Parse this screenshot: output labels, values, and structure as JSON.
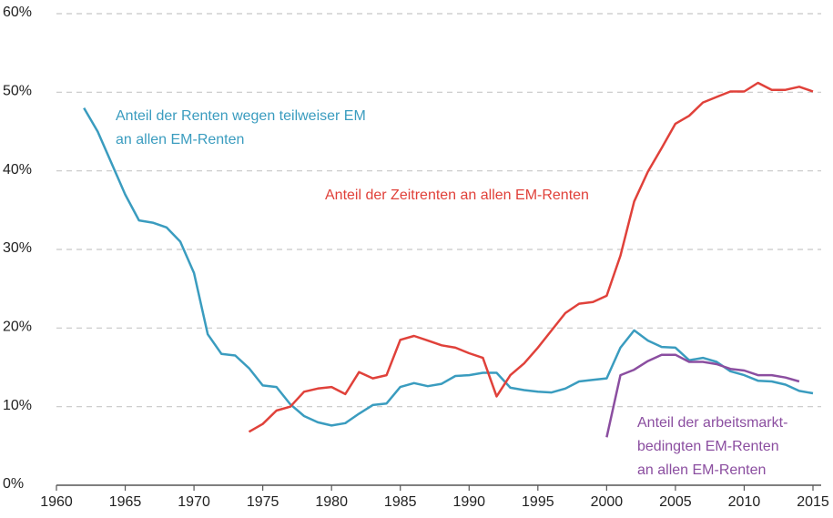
{
  "chart_data": {
    "type": "line",
    "x": [
      1962,
      1963,
      1964,
      1965,
      1966,
      1967,
      1968,
      1969,
      1970,
      1971,
      1972,
      1973,
      1974,
      1975,
      1976,
      1977,
      1978,
      1979,
      1980,
      1981,
      1982,
      1983,
      1984,
      1985,
      1986,
      1987,
      1988,
      1989,
      1990,
      1991,
      1992,
      1993,
      1994,
      1995,
      1996,
      1997,
      1998,
      1999,
      2000,
      2001,
      2002,
      2003,
      2004,
      2005,
      2006,
      2007,
      2008,
      2009,
      2010,
      2011,
      2012,
      2013,
      2014,
      2015
    ],
    "series": [
      {
        "name": "Anteil der Renten wegen teilweiser EM an allen EM-Renten",
        "color": "#3a9cbf",
        "values": [
          48,
          45,
          41,
          37,
          33.7,
          33.4,
          32.8,
          31,
          27,
          19.2,
          16.7,
          16.5,
          14.9,
          12.7,
          12.5,
          10.3,
          8.8,
          8,
          7.6,
          7.9,
          9.1,
          10.2,
          10.4,
          12.5,
          13,
          12.6,
          12.9,
          13.9,
          14,
          14.3,
          14.3,
          12.4,
          12.1,
          11.9,
          11.8,
          12.3,
          13.2,
          13.4,
          13.6,
          17.5,
          19.7,
          18.4,
          17.6,
          17.5,
          15.9,
          16.2,
          15.7,
          14.5,
          14,
          13.3,
          13.2,
          12.8,
          12,
          11.7
        ]
      },
      {
        "name": "Anteil der Zeitrenten an allen EM-Renten",
        "color": "#e0413a",
        "values": [
          null,
          null,
          null,
          null,
          null,
          null,
          null,
          null,
          null,
          null,
          null,
          null,
          6.8,
          7.8,
          9.5,
          10,
          11.9,
          12.3,
          12.5,
          11.6,
          14.4,
          13.6,
          14,
          18.5,
          19,
          18.4,
          17.8,
          17.5,
          16.8,
          16.2,
          11.3,
          14,
          15.5,
          17.5,
          19.7,
          21.9,
          23.1,
          23.3,
          24.1,
          29.2,
          36.1,
          39.9,
          42.9,
          46,
          47,
          48.7,
          49.4,
          50.1,
          50.1,
          51.2,
          50.3,
          50.3,
          50.7,
          50.1
        ]
      },
      {
        "name": "Anteil der arbeitsmarktbedingten EM-Renten an allen EM-Renten",
        "color": "#8b4ea0",
        "values": [
          null,
          null,
          null,
          null,
          null,
          null,
          null,
          null,
          null,
          null,
          null,
          null,
          null,
          null,
          null,
          null,
          null,
          null,
          null,
          null,
          null,
          null,
          null,
          null,
          null,
          null,
          null,
          null,
          null,
          null,
          null,
          null,
          null,
          null,
          null,
          null,
          null,
          null,
          6.1,
          14,
          14.7,
          15.8,
          16.6,
          16.6,
          15.7,
          15.7,
          15.4,
          14.8,
          14.6,
          14,
          14,
          13.7,
          13.2,
          null
        ]
      }
    ],
    "annotations": [
      {
        "lines": [
          "Anteil der Renten wegen teilweiser EM",
          "an allen EM-Renten"
        ],
        "color": "#3a9cbf"
      },
      {
        "lines": [
          "Anteil der Zeitrenten an allen EM-Renten"
        ],
        "color": "#e0413a"
      },
      {
        "lines": [
          "Anteil der arbeitsmarkt-",
          "bedingten EM-Renten",
          "an allen EM-Renten"
        ],
        "color": "#8b4ea0"
      }
    ],
    "xlim": [
      1960,
      2015
    ],
    "ylim": [
      0,
      60
    ],
    "xticks": [
      1960,
      1965,
      1970,
      1975,
      1980,
      1985,
      1990,
      1995,
      2000,
      2005,
      2010,
      2015
    ],
    "yticks": [
      {
        "value": 0,
        "label": "0%"
      },
      {
        "value": 10,
        "label": "10%"
      },
      {
        "value": 20,
        "label": "20%"
      },
      {
        "value": 30,
        "label": "30%"
      },
      {
        "value": 40,
        "label": "40%"
      },
      {
        "value": 50,
        "label": "50%"
      },
      {
        "value": 60,
        "label": "60%"
      }
    ],
    "grid": true
  }
}
